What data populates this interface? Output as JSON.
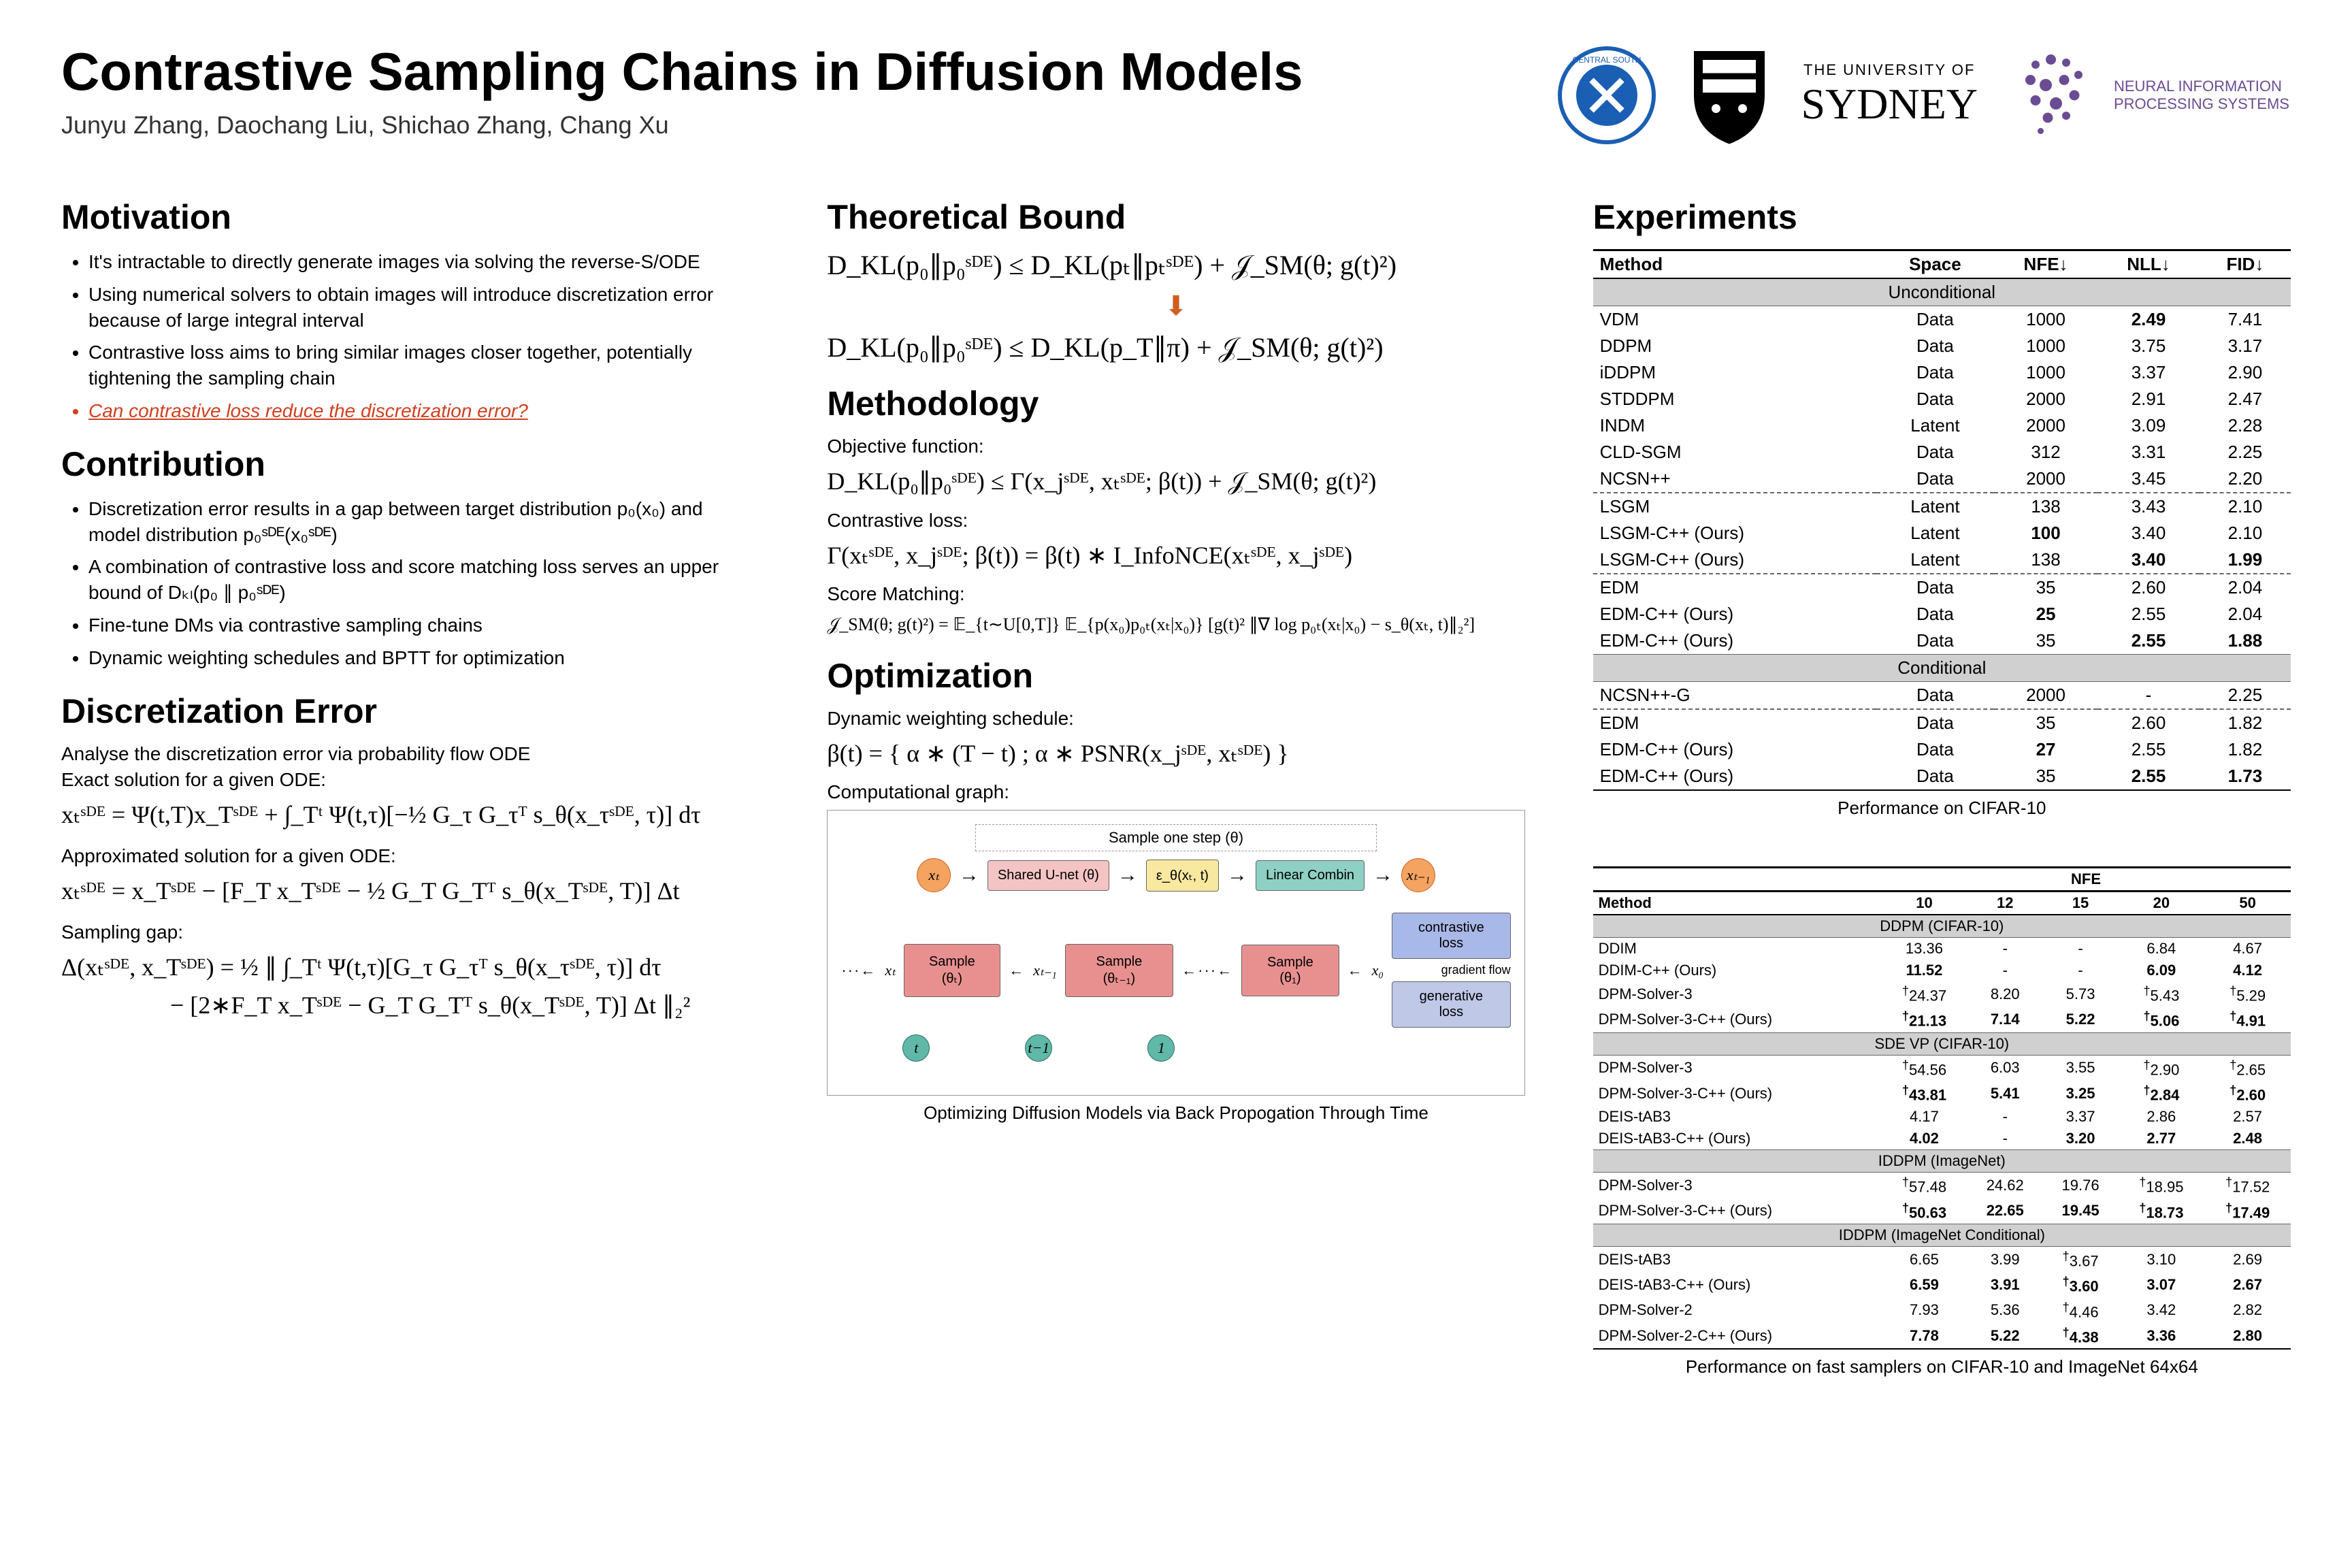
{
  "header": {
    "title": "Contrastive Sampling Chains in Diffusion Models",
    "authors": "Junyu Zhang, Daochang Liu, Shichao Zhang, Chang Xu"
  },
  "logos": {
    "csu": "Central South University",
    "usyd_shield": "USYD",
    "usyd_text_top": "THE UNIVERSITY OF",
    "usyd_text_main": "SYDNEY",
    "neurips": "NEURAL INFORMATION PROCESSING SYSTEMS"
  },
  "motivation": {
    "title": "Motivation",
    "items": [
      "It's intractable to directly generate images via solving the reverse-S/ODE",
      "Using numerical solvers to obtain images will introduce discretization error because of large integral interval",
      "Contrastive loss aims to bring similar images closer together, potentially tightening the sampling chain",
      "Can contrastive loss reduce the discretization error?"
    ]
  },
  "contribution": {
    "title": "Contribution",
    "items": [
      "Discretization error results in a gap between target distribution p₀(x₀) and model distribution p₀ˢᴰᴱ(x₀ˢᴰᴱ)",
      "A combination of contrastive loss and score matching loss serves an upper bound of Dₖₗ(p₀ ∥ p₀ˢᴰᴱ)",
      "Fine-tune DMs via contrastive sampling chains",
      "Dynamic weighting schedules and BPTT for optimization"
    ]
  },
  "discretization": {
    "title": "Discretization Error",
    "intro1": "Analyse the discretization error via probability flow ODE",
    "intro2": "Exact solution for a given ODE:",
    "eq1": "xₜˢᴰᴱ = Ψ(t,T)x_Tˢᴰᴱ + ∫_Tᵗ Ψ(t,τ)[−½ G_τ G_τᵀ s_θ(x_τˢᴰᴱ, τ)] dτ",
    "approx_label": "Approximated solution for a given ODE:",
    "eq2": "xₜˢᴰᴱ = x_Tˢᴰᴱ − [F_T x_Tˢᴰᴱ − ½ G_T G_Tᵀ s_θ(x_Tˢᴰᴱ, T)] Δt",
    "gap_label": "Sampling gap:",
    "eq3a": "Δ(xₜˢᴰᴱ, x_Tˢᴰᴱ) = ½ ∥ ∫_Tᵗ Ψ(t,τ)[G_τ G_τᵀ s_θ(x_τˢᴰᴱ, τ)] dτ",
    "eq3b": "− [2∗F_T x_Tˢᴰᴱ − G_T G_Tᵀ s_θ(x_Tˢᴰᴱ, T)] Δt ∥₂²"
  },
  "theoretical": {
    "title": "Theoretical Bound",
    "eq1": "D_KL(p₀∥p₀ˢᴰᴱ) ≤ D_KL(pₜ∥pₜˢᴰᴱ) + 𝒥_SM(θ; g(t)²)",
    "eq2": "D_KL(p₀∥p₀ˢᴰᴱ) ≤ D_KL(p_T∥π) + 𝒥_SM(θ; g(t)²)"
  },
  "methodology": {
    "title": "Methodology",
    "obj_label": "Objective function:",
    "obj_eq": "D_KL(p₀∥p₀ˢᴰᴱ) ≤ Γ(x_jˢᴰᴱ, xₜˢᴰᴱ; β(t)) + 𝒥_SM(θ; g(t)²)",
    "cl_label": "Contrastive loss:",
    "cl_eq": "Γ(xₜˢᴰᴱ, x_jˢᴰᴱ; β(t)) = β(t) ∗ I_InfoNCE(xₜˢᴰᴱ, x_jˢᴰᴱ)",
    "sm_label": "Score Matching:",
    "sm_eq": "𝒥_SM(θ; g(t)²) = 𝔼_{t∼U[0,T]} 𝔼_{p(x₀)p₀ₜ(xₜ|x₀)} [g(t)² ∥∇ log p₀ₜ(xₜ|x₀) − s_θ(xₜ, t)∥₂²]"
  },
  "optimization": {
    "title": "Optimization",
    "dw_label": "Dynamic weighting schedule:",
    "dw_eq": "β(t) = { α ∗ (T − t) ; α ∗ PSNR(x_jˢᴰᴱ, xₜˢᴰᴱ) }",
    "cg_label": "Computational graph:",
    "cg_caption": "Optimizing Diffusion Models via Back Propogation Through Time",
    "diagram": {
      "sample_one_step": "Sample one step (θ)",
      "shared_unet": "Shared U-net (θ)",
      "eps": "ε_θ(xₜ, t)",
      "linear": "Linear Combin",
      "sample_boxes": [
        "Sample (θₜ)",
        "Sample (θₜ₋₁)",
        "Sample (θ₁)"
      ],
      "contrastive": "contrastive loss",
      "generative": "generative loss",
      "gradient_flow": "gradient flow",
      "xt": "xₜ",
      "xt1": "xₜ₋₁",
      "x0": "x₀",
      "tlabels": [
        "t",
        "t−1",
        "1"
      ]
    }
  },
  "experiments": {
    "title": "Experiments",
    "table1": {
      "columns": [
        "Method",
        "Space",
        "NFE↓",
        "NLL↓",
        "FID↓"
      ],
      "section1": "Unconditional",
      "rows1": [
        [
          "VDM",
          "Data",
          "1000",
          "2.49",
          "7.41",
          {
            "bold_cols": [
              3
            ]
          }
        ],
        [
          "DDPM",
          "Data",
          "1000",
          "3.75",
          "3.17",
          {}
        ],
        [
          "iDDPM",
          "Data",
          "1000",
          "3.37",
          "2.90",
          {}
        ],
        [
          "STDDPM",
          "Data",
          "2000",
          "2.91",
          "2.47",
          {}
        ],
        [
          "INDM",
          "Latent",
          "2000",
          "3.09",
          "2.28",
          {}
        ],
        [
          "CLD-SGM",
          "Data",
          "312",
          "3.31",
          "2.25",
          {}
        ],
        [
          "NCSN++",
          "Data",
          "2000",
          "3.45",
          "2.20",
          {}
        ]
      ],
      "rows1b": [
        [
          "LSGM",
          "Latent",
          "138",
          "3.43",
          "2.10",
          {}
        ],
        [
          "LSGM-C++ (Ours)",
          "Latent",
          "100",
          "3.40",
          "2.10",
          {
            "bold_cols": [
              2
            ]
          }
        ],
        [
          "LSGM-C++ (Ours)",
          "Latent",
          "138",
          "3.40",
          "1.99",
          {
            "bold_cols": [
              3,
              4
            ]
          }
        ]
      ],
      "rows1c": [
        [
          "EDM",
          "Data",
          "35",
          "2.60",
          "2.04",
          {}
        ],
        [
          "EDM-C++ (Ours)",
          "Data",
          "25",
          "2.55",
          "2.04",
          {
            "bold_cols": [
              2
            ]
          }
        ],
        [
          "EDM-C++ (Ours)",
          "Data",
          "35",
          "2.55",
          "1.88",
          {
            "bold_cols": [
              3,
              4
            ]
          }
        ]
      ],
      "section2": "Conditional",
      "rows2": [
        [
          "NCSN++-G",
          "Data",
          "2000",
          "-",
          "2.25",
          {}
        ]
      ],
      "rows2b": [
        [
          "EDM",
          "Data",
          "35",
          "2.60",
          "1.82",
          {}
        ],
        [
          "EDM-C++ (Ours)",
          "Data",
          "27",
          "2.55",
          "1.82",
          {
            "bold_cols": [
              2
            ]
          }
        ],
        [
          "EDM-C++ (Ours)",
          "Data",
          "35",
          "2.55",
          "1.73",
          {
            "bold_cols": [
              3,
              4
            ]
          }
        ]
      ],
      "caption": "Performance on CIFAR-10"
    },
    "table2": {
      "header_top": "NFE",
      "nfe_cols": [
        "10",
        "12",
        "15",
        "20",
        "50"
      ],
      "method_col": "Method",
      "sections": [
        {
          "name": "DDPM (CIFAR-10)",
          "rows": [
            [
              "DDIM",
              "13.36",
              "-",
              "-",
              "6.84",
              "4.67",
              {}
            ],
            [
              "DDIM-C++ (Ours)",
              "11.52",
              "-",
              "-",
              "6.09",
              "4.12",
              {
                "bold_cols": [
                  1,
                  4,
                  5
                ]
              }
            ],
            [
              "DPM-Solver-3",
              "24.37",
              "8.20",
              "5.73",
              "5.43",
              "5.29",
              {
                "dag": [
                  1,
                  4,
                  5
                ]
              }
            ],
            [
              "DPM-Solver-3-C++ (Ours)",
              "21.13",
              "7.14",
              "5.22",
              "5.06",
              "4.91",
              {
                "bold_cols": [
                  1,
                  2,
                  3,
                  4,
                  5
                ],
                "dag": [
                  1,
                  4,
                  5
                ]
              }
            ]
          ]
        },
        {
          "name": "SDE VP (CIFAR-10)",
          "rows": [
            [
              "DPM-Solver-3",
              "54.56",
              "6.03",
              "3.55",
              "2.90",
              "2.65",
              {
                "dag": [
                  1,
                  4,
                  5
                ]
              }
            ],
            [
              "DPM-Solver-3-C++ (Ours)",
              "43.81",
              "5.41",
              "3.25",
              "2.84",
              "2.60",
              {
                "bold_cols": [
                  1,
                  2,
                  3,
                  4,
                  5
                ],
                "dag": [
                  1,
                  4,
                  5
                ]
              }
            ],
            [
              "DEIS-tAB3",
              "4.17",
              "-",
              "3.37",
              "2.86",
              "2.57",
              {}
            ],
            [
              "DEIS-tAB3-C++ (Ours)",
              "4.02",
              "-",
              "3.20",
              "2.77",
              "2.48",
              {
                "bold_cols": [
                  1,
                  3,
                  4,
                  5
                ]
              }
            ]
          ]
        },
        {
          "name": "IDDPM (ImageNet)",
          "rows": [
            [
              "DPM-Solver-3",
              "57.48",
              "24.62",
              "19.76",
              "18.95",
              "17.52",
              {
                "dag": [
                  1,
                  4,
                  5
                ]
              }
            ],
            [
              "DPM-Solver-3-C++ (Ours)",
              "50.63",
              "22.65",
              "19.45",
              "18.73",
              "17.49",
              {
                "bold_cols": [
                  1,
                  2,
                  3,
                  4,
                  5
                ],
                "dag": [
                  1,
                  4,
                  5
                ]
              }
            ]
          ]
        },
        {
          "name": "IDDPM (ImageNet Conditional)",
          "rows": [
            [
              "DEIS-tAB3",
              "6.65",
              "3.99",
              "3.67",
              "3.10",
              "2.69",
              {
                "dag": [
                  3
                ]
              }
            ],
            [
              "DEIS-tAB3-C++ (Ours)",
              "6.59",
              "3.91",
              "3.60",
              "3.07",
              "2.67",
              {
                "bold_cols": [
                  1,
                  2,
                  3,
                  4,
                  5
                ],
                "dag": [
                  3
                ]
              }
            ],
            [
              "DPM-Solver-2",
              "7.93",
              "5.36",
              "4.46",
              "3.42",
              "2.82",
              {
                "dag": [
                  3
                ]
              }
            ],
            [
              "DPM-Solver-2-C++ (Ours)",
              "7.78",
              "5.22",
              "4.38",
              "3.36",
              "2.80",
              {
                "bold_cols": [
                  1,
                  2,
                  3,
                  4,
                  5
                ],
                "dag": [
                  3
                ]
              }
            ]
          ]
        }
      ],
      "caption": "Performance on fast samplers on CIFAR-10 and ImageNet 64x64"
    }
  },
  "colors": {
    "text": "#000000",
    "highlight": "#d04020",
    "arrow": "#d06020",
    "section_bg": "#d0d0d0"
  }
}
